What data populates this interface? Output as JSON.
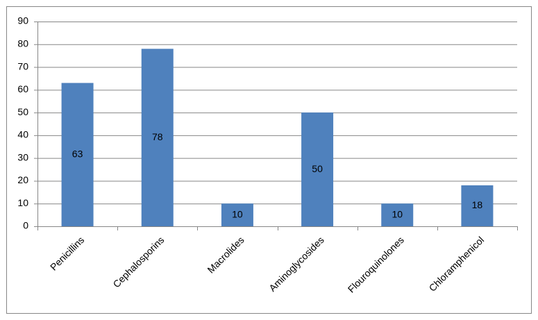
{
  "chart_data": {
    "type": "bar",
    "categories": [
      "Penicillins",
      "Cephalosporins",
      "Macrolides",
      "Aminoglycosides",
      "Flouroquinolones",
      "Chloramphenicol"
    ],
    "values": [
      63,
      78,
      10,
      50,
      10,
      18
    ],
    "color": "#4f81bd",
    "ylim": [
      0,
      90
    ],
    "yticks": [
      0,
      10,
      20,
      30,
      40,
      50,
      60,
      70,
      80,
      90
    ],
    "grid": true
  }
}
